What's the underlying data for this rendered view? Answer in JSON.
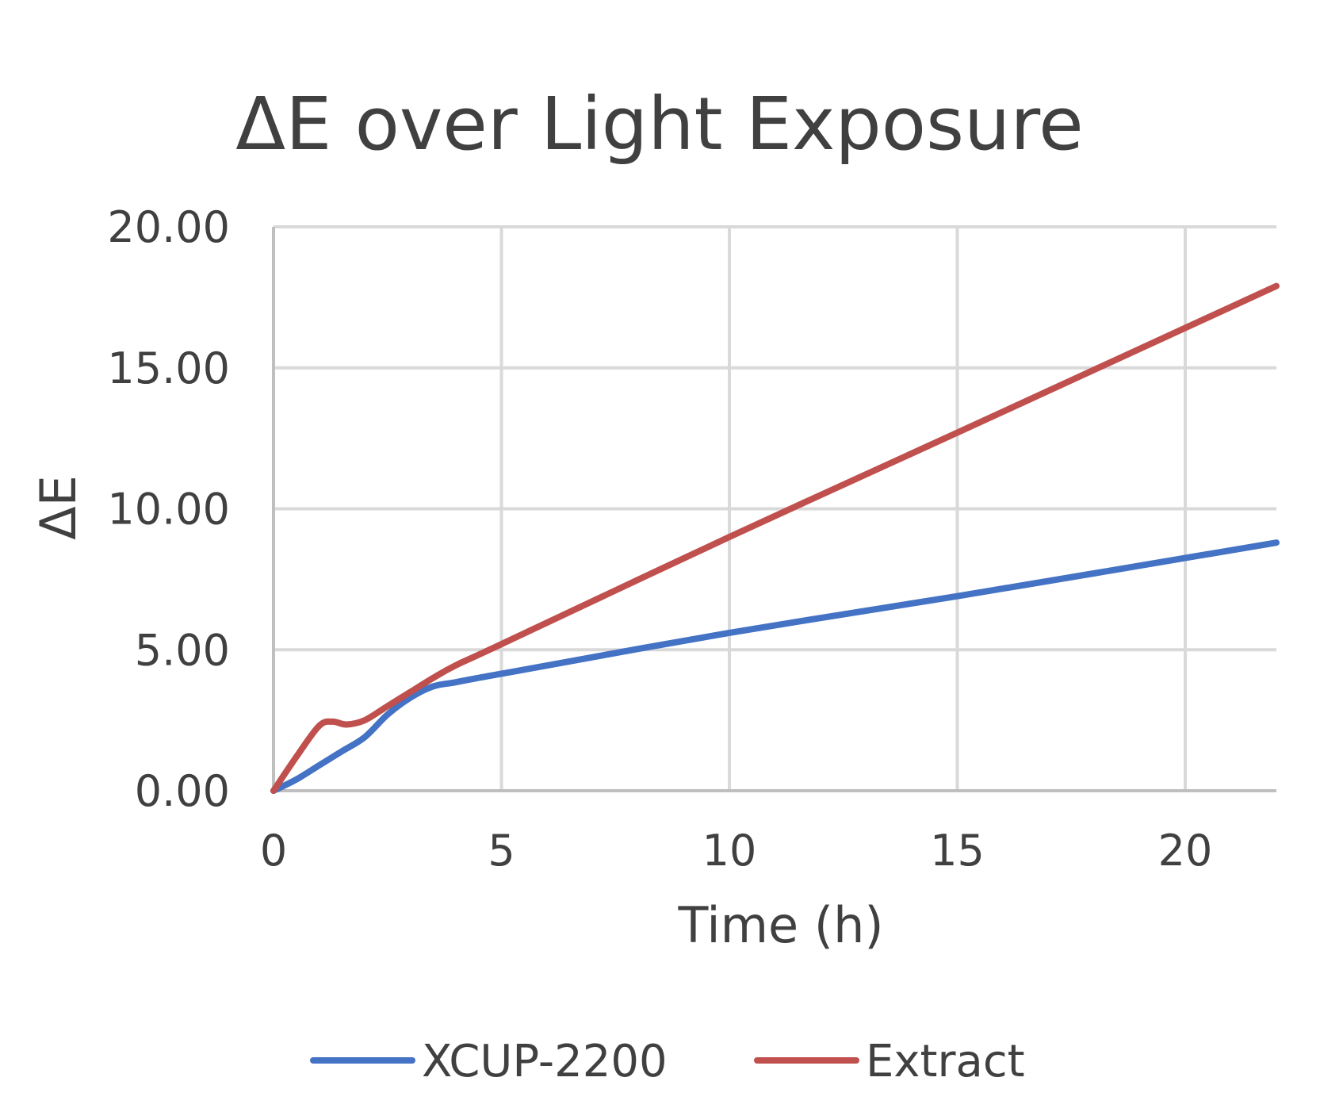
{
  "chart_data": {
    "type": "line",
    "title": "ΔE over Light Exposure",
    "xlabel": "Time (h)",
    "ylabel": "ΔE",
    "xlim": [
      0,
      22
    ],
    "ylim": [
      0,
      20
    ],
    "x_ticks": [
      0,
      5,
      10,
      15,
      20
    ],
    "y_ticks": [
      0,
      5,
      10,
      15,
      20
    ],
    "x_tick_labels": [
      "0",
      "5",
      "10",
      "15",
      "20"
    ],
    "y_tick_labels": [
      "0.00",
      "5.00",
      "10.00",
      "15.00",
      "20.00"
    ],
    "grid": true,
    "legend_position": "bottom",
    "series": [
      {
        "name": "XCUP-2200",
        "color": "#4472C4",
        "x": [
          0,
          0.5,
          1,
          1.5,
          2,
          2.5,
          3,
          3.5,
          4,
          5,
          10,
          15,
          22
        ],
        "y": [
          0,
          0.4,
          0.9,
          1.4,
          1.9,
          2.7,
          3.3,
          3.7,
          3.85,
          4.15,
          5.6,
          6.9,
          8.8
        ]
      },
      {
        "name": "Extract",
        "color": "#C0504D",
        "x": [
          0,
          0.5,
          1,
          1.3,
          1.6,
          2,
          2.5,
          3,
          3.5,
          4,
          5,
          10,
          15,
          22
        ],
        "y": [
          0,
          1.2,
          2.3,
          2.45,
          2.35,
          2.5,
          3.0,
          3.5,
          4.0,
          4.45,
          5.2,
          9.0,
          12.7,
          17.9
        ]
      }
    ]
  }
}
